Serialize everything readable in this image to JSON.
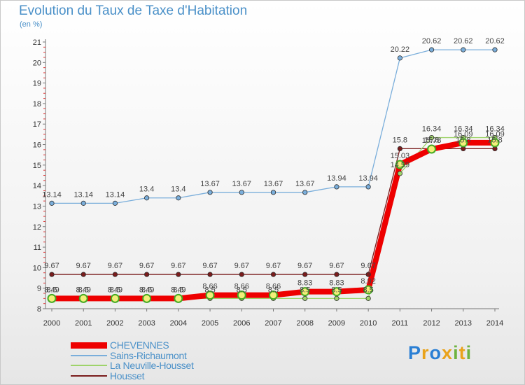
{
  "title": "Evolution du Taux de Taxe d'Habitation",
  "unit": "(en %)",
  "brand": {
    "letters": [
      "P",
      "r",
      "o",
      "x",
      "i",
      "t",
      "i"
    ],
    "colors": [
      "#2a7fd4",
      "#e9a31b",
      "#2a7fd4",
      "#e9a31b",
      "#6db33f",
      "#e9a31b",
      "#6db33f"
    ]
  },
  "chart_data": {
    "type": "line",
    "x": [
      "2000",
      "2001",
      "2002",
      "2003",
      "2004",
      "2005",
      "2006",
      "2007",
      "2008",
      "2009",
      "2010",
      "2011",
      "2012",
      "2013",
      "2014"
    ],
    "ylim": [
      8,
      21
    ],
    "yticks": [
      8,
      9,
      10,
      11,
      12,
      13,
      14,
      15,
      16,
      17,
      18,
      19,
      20,
      21
    ],
    "grid": false,
    "legend_position": "bottom-left",
    "series": [
      {
        "name": "CHEVENNES",
        "color": "#ee0000",
        "values": [
          8.5,
          8.5,
          8.5,
          8.5,
          8.5,
          8.66,
          8.66,
          8.66,
          8.83,
          8.83,
          8.92,
          15.03,
          15.78,
          16.09,
          16.09
        ],
        "labels": [
          "8.5",
          "8.5",
          "8.5",
          "8.5",
          "8.5",
          "8.66",
          "8.66",
          "8.66",
          "8.83",
          "8.83",
          "8.92",
          "15.03",
          "15.78",
          "16.09",
          "16.09"
        ]
      },
      {
        "name": "Sains-Richaumont",
        "color": "#7aaedb",
        "values": [
          13.14,
          13.14,
          13.14,
          13.4,
          13.4,
          13.67,
          13.67,
          13.67,
          13.67,
          13.94,
          13.94,
          20.22,
          20.62,
          20.62,
          20.62
        ],
        "labels": [
          "13.14",
          "13.14",
          "13.14",
          "13.4",
          "13.4",
          "13.67",
          "13.67",
          "13.67",
          "13.67",
          "13.94",
          "13.94",
          "20.22",
          "20.62",
          "20.62",
          "20.62"
        ]
      },
      {
        "name": "La Neuville-Housset",
        "color": "#9ed36a",
        "values": [
          8.49,
          8.49,
          8.49,
          8.49,
          8.49,
          8.5,
          8.5,
          8.5,
          8.5,
          8.5,
          8.5,
          14.59,
          16.34,
          16.34,
          16.34
        ],
        "labels": [
          "8.49",
          "8.49",
          "8.49",
          "8.49",
          "8.49",
          "8.5",
          "8.5",
          "8.5",
          "8.5",
          "8.5",
          "8.5",
          "14.59",
          "16.34",
          "16.34",
          "16.34"
        ]
      },
      {
        "name": "Housset",
        "color": "#7a1c1c",
        "values": [
          9.67,
          9.67,
          9.67,
          9.67,
          9.67,
          9.67,
          9.67,
          9.67,
          9.67,
          9.67,
          9.67,
          15.8,
          15.8,
          15.8,
          15.8
        ],
        "labels": [
          "9.67",
          "9.67",
          "9.67",
          "9.67",
          "9.67",
          "9.67",
          "9.67",
          "9.67",
          "9.67",
          "9.67",
          "9.67",
          "15.8",
          "15.8",
          "15.8",
          "15.8"
        ]
      }
    ]
  }
}
